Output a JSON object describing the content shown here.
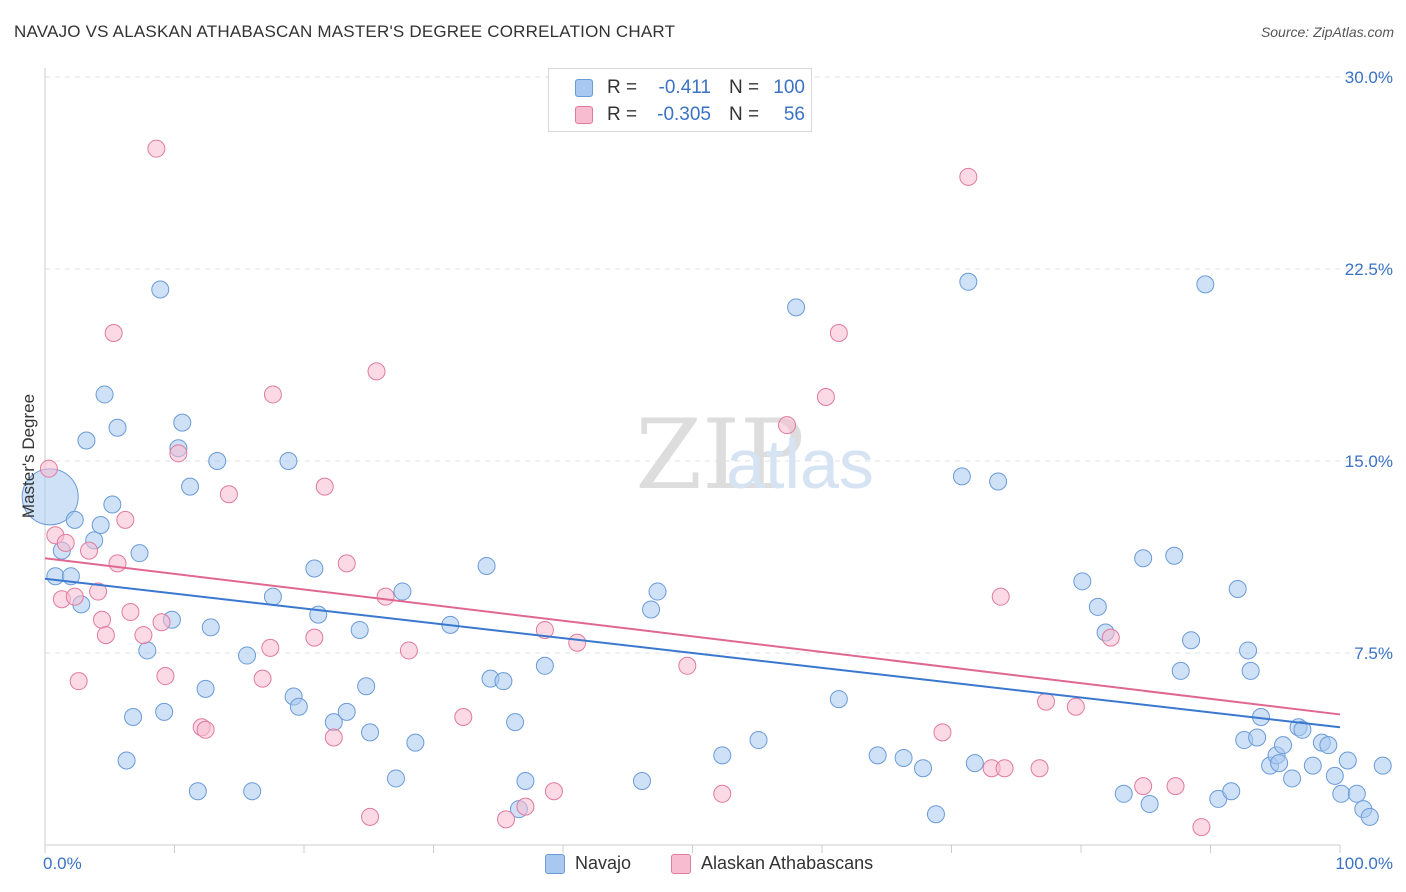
{
  "title": "NAVAJO VS ALASKAN ATHABASCAN MASTER'S DEGREE CORRELATION CHART",
  "source": "Source: ZipAtlas.com",
  "watermark": {
    "zip": "ZIP",
    "atlas": "atlas"
  },
  "legend": {
    "rows": [
      {
        "r_label": "R =",
        "r_value": "-0.411",
        "n_label": "N =",
        "n_value": "100",
        "color": "#a8c8f0",
        "border": "#6a9bd8"
      },
      {
        "r_label": "R =",
        "r_value": "-0.305",
        "n_label": "N =",
        "n_value": "56",
        "color": "#f8bcd0",
        "border": "#e07aa0"
      }
    ]
  },
  "chart_data": {
    "type": "scatter",
    "title": "NAVAJO VS ALASKAN ATHABASCAN MASTER'S DEGREE CORRELATION CHART",
    "xlabel": "",
    "ylabel": "Master's Degree",
    "xlim": [
      0,
      100
    ],
    "ylim": [
      0,
      30
    ],
    "x_tick_labels": [
      "0.0%",
      "100.0%"
    ],
    "y_ticks": [
      7.5,
      15.0,
      22.5,
      30.0
    ],
    "y_tick_labels": [
      "7.5%",
      "15.0%",
      "22.5%",
      "30.0%"
    ],
    "grid": true,
    "legend_position": "bottom-center",
    "series": [
      {
        "name": "Navajo",
        "color": "#a8c8f0",
        "stroke": "#6a9bd8",
        "trend": {
          "x": [
            0,
            100
          ],
          "y": [
            10.4,
            4.6
          ],
          "color": "#3a78d0"
        },
        "points": [
          [
            0.4,
            13.6,
            3
          ],
          [
            0.8,
            10.5,
            1
          ],
          [
            1.3,
            11.5,
            1
          ],
          [
            2.0,
            10.5,
            1
          ],
          [
            2.3,
            12.7,
            1
          ],
          [
            2.8,
            9.4,
            1
          ],
          [
            3.2,
            15.8,
            1
          ],
          [
            3.8,
            11.9,
            1
          ],
          [
            4.3,
            12.5,
            1
          ],
          [
            4.6,
            17.6,
            1
          ],
          [
            5.2,
            13.3,
            1
          ],
          [
            5.6,
            16.3,
            1
          ],
          [
            6.3,
            3.3,
            1
          ],
          [
            6.8,
            5.0,
            1
          ],
          [
            7.3,
            11.4,
            1
          ],
          [
            7.9,
            7.6,
            1
          ],
          [
            8.9,
            21.7,
            1
          ],
          [
            9.2,
            5.2,
            1
          ],
          [
            9.8,
            8.8,
            1
          ],
          [
            10.3,
            15.5,
            1
          ],
          [
            10.6,
            16.5,
            1
          ],
          [
            11.2,
            14.0,
            1
          ],
          [
            11.8,
            2.1,
            1
          ],
          [
            12.4,
            6.1,
            1
          ],
          [
            12.8,
            8.5,
            1
          ],
          [
            13.3,
            15.0,
            1
          ],
          [
            15.6,
            7.4,
            1
          ],
          [
            16.0,
            2.1,
            1
          ],
          [
            17.6,
            9.7,
            1
          ],
          [
            18.8,
            15.0,
            1
          ],
          [
            19.2,
            5.8,
            1
          ],
          [
            19.6,
            5.4,
            1
          ],
          [
            20.8,
            10.8,
            1
          ],
          [
            21.1,
            9.0,
            1
          ],
          [
            22.3,
            4.8,
            1
          ],
          [
            23.3,
            5.2,
            1
          ],
          [
            24.3,
            8.4,
            1
          ],
          [
            24.8,
            6.2,
            1
          ],
          [
            25.1,
            4.4,
            1
          ],
          [
            27.1,
            2.6,
            1
          ],
          [
            27.6,
            9.9,
            1
          ],
          [
            28.6,
            4.0,
            1
          ],
          [
            31.3,
            8.6,
            1
          ],
          [
            34.1,
            10.9,
            1
          ],
          [
            34.4,
            6.5,
            1
          ],
          [
            35.4,
            6.4,
            1
          ],
          [
            36.3,
            4.8,
            1
          ],
          [
            36.6,
            1.4,
            1
          ],
          [
            37.1,
            2.5,
            1
          ],
          [
            38.6,
            7.0,
            1
          ],
          [
            46.1,
            2.5,
            1
          ],
          [
            46.8,
            9.2,
            1
          ],
          [
            47.3,
            9.9,
            1
          ],
          [
            52.3,
            3.5,
            1
          ],
          [
            55.1,
            4.1,
            1
          ],
          [
            58.0,
            21.0,
            1
          ],
          [
            61.3,
            5.7,
            1
          ],
          [
            64.3,
            3.5,
            1
          ],
          [
            66.3,
            3.4,
            1
          ],
          [
            67.8,
            3.0,
            1
          ],
          [
            68.8,
            1.2,
            1
          ],
          [
            70.8,
            14.4,
            1
          ],
          [
            71.3,
            22.0,
            1
          ],
          [
            71.8,
            3.2,
            1
          ],
          [
            73.6,
            14.2,
            1
          ],
          [
            80.1,
            10.3,
            1
          ],
          [
            81.3,
            9.3,
            1
          ],
          [
            81.9,
            8.3,
            1
          ],
          [
            83.3,
            2.0,
            1
          ],
          [
            84.8,
            11.2,
            1
          ],
          [
            85.3,
            1.6,
            1
          ],
          [
            87.2,
            11.3,
            1
          ],
          [
            87.7,
            6.8,
            1
          ],
          [
            88.5,
            8.0,
            1
          ],
          [
            89.6,
            21.9,
            1
          ],
          [
            90.6,
            1.8,
            1
          ],
          [
            91.6,
            2.1,
            1
          ],
          [
            92.1,
            10.0,
            1
          ],
          [
            92.6,
            4.1,
            1
          ],
          [
            93.1,
            6.8,
            1
          ],
          [
            92.9,
            7.6,
            1
          ],
          [
            93.6,
            4.2,
            1
          ],
          [
            93.9,
            5.0,
            1
          ],
          [
            94.6,
            3.1,
            1
          ],
          [
            95.1,
            3.5,
            1
          ],
          [
            95.6,
            3.9,
            1
          ],
          [
            95.3,
            3.2,
            1
          ],
          [
            96.3,
            2.6,
            1
          ],
          [
            96.8,
            4.6,
            1
          ],
          [
            97.1,
            4.5,
            1
          ],
          [
            97.9,
            3.1,
            1
          ],
          [
            98.6,
            4.0,
            1
          ],
          [
            99.1,
            3.9,
            1
          ],
          [
            99.6,
            2.7,
            1
          ],
          [
            100.1,
            2.0,
            1
          ],
          [
            100.6,
            3.3,
            1
          ],
          [
            101.3,
            2.0,
            1
          ],
          [
            101.8,
            1.4,
            1
          ],
          [
            102.3,
            1.1,
            1
          ],
          [
            103.3,
            3.1,
            1
          ]
        ]
      },
      {
        "name": "Alaskan Athabascans",
        "color": "#f8bcd0",
        "stroke": "#e07aa0",
        "trend": {
          "x": [
            0,
            100
          ],
          "y": [
            11.2,
            5.1
          ],
          "color": "#e06890"
        },
        "points": [
          [
            0.3,
            14.7,
            1
          ],
          [
            0.8,
            12.1,
            1
          ],
          [
            1.6,
            11.8,
            1
          ],
          [
            1.3,
            9.6,
            1
          ],
          [
            2.3,
            9.7,
            1
          ],
          [
            2.6,
            6.4,
            1
          ],
          [
            3.4,
            11.5,
            1
          ],
          [
            4.1,
            9.9,
            1
          ],
          [
            4.4,
            8.8,
            1
          ],
          [
            4.7,
            8.2,
            1
          ],
          [
            5.6,
            11.0,
            1
          ],
          [
            6.2,
            12.7,
            1
          ],
          [
            5.3,
            20.0,
            1
          ],
          [
            6.6,
            9.1,
            1
          ],
          [
            7.6,
            8.2,
            1
          ],
          [
            8.6,
            27.2,
            1
          ],
          [
            9.0,
            8.7,
            1
          ],
          [
            9.3,
            6.6,
            1
          ],
          [
            10.3,
            15.3,
            1
          ],
          [
            12.1,
            4.6,
            1
          ],
          [
            12.4,
            4.5,
            1
          ],
          [
            14.2,
            13.7,
            1
          ],
          [
            16.8,
            6.5,
            1
          ],
          [
            17.4,
            7.7,
            1
          ],
          [
            17.6,
            17.6,
            1
          ],
          [
            20.8,
            8.1,
            1
          ],
          [
            21.6,
            14.0,
            1
          ],
          [
            22.3,
            4.2,
            1
          ],
          [
            23.3,
            11.0,
            1
          ],
          [
            25.1,
            1.1,
            1
          ],
          [
            25.6,
            18.5,
            1
          ],
          [
            26.3,
            9.7,
            1
          ],
          [
            28.1,
            7.6,
            1
          ],
          [
            32.3,
            5.0,
            1
          ],
          [
            35.6,
            1.0,
            1
          ],
          [
            37.1,
            1.5,
            1
          ],
          [
            38.6,
            8.4,
            1
          ],
          [
            39.3,
            2.1,
            1
          ],
          [
            41.1,
            7.9,
            1
          ],
          [
            49.6,
            7.0,
            1
          ],
          [
            52.3,
            2.0,
            1
          ],
          [
            57.3,
            16.4,
            1
          ],
          [
            60.3,
            17.5,
            1
          ],
          [
            61.3,
            20.0,
            1
          ],
          [
            69.3,
            4.4,
            1
          ],
          [
            71.3,
            26.1,
            1
          ],
          [
            73.1,
            3.0,
            1
          ],
          [
            74.1,
            3.0,
            1
          ],
          [
            73.8,
            9.7,
            1
          ],
          [
            76.8,
            3.0,
            1
          ],
          [
            77.3,
            5.6,
            1
          ],
          [
            79.6,
            5.4,
            1
          ],
          [
            82.3,
            8.1,
            1
          ],
          [
            84.8,
            2.3,
            1
          ],
          [
            87.3,
            2.3,
            1
          ],
          [
            89.3,
            0.7,
            1
          ]
        ]
      }
    ]
  }
}
